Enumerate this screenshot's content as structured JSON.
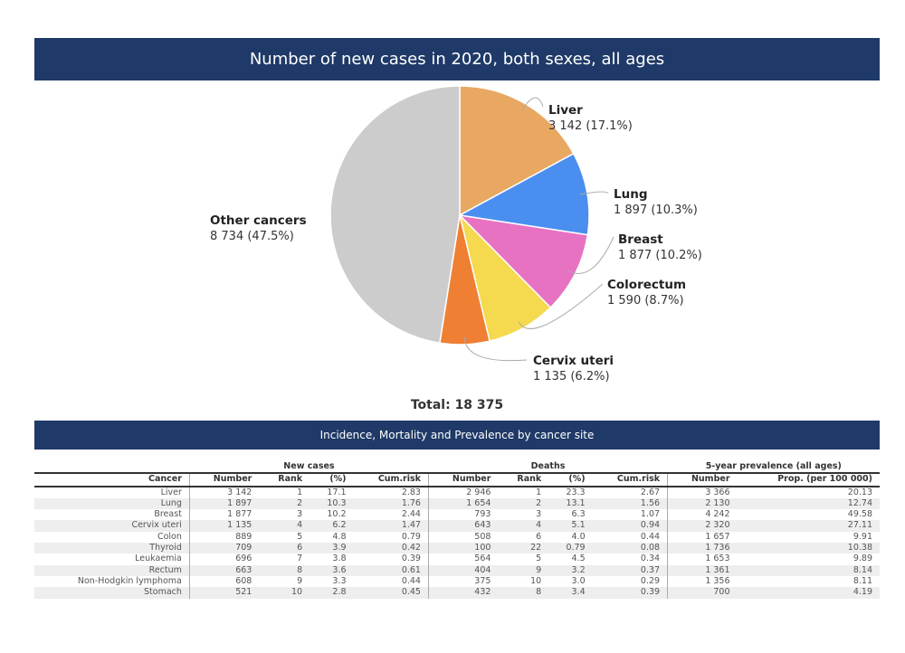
{
  "title": "Number of new cases in 2020, both sexes, all ages",
  "table_title": "Incidence, Mortality and Prevalence by cancer site",
  "chart_data": {
    "type": "pie",
    "title": "Number of new cases in 2020, both sexes, all ages",
    "total_label": "Total: 18 375",
    "slices": [
      {
        "name": "Liver",
        "value": 3142,
        "label": "3 142 (17.1%)",
        "color": "#e8a862"
      },
      {
        "name": "Lung",
        "value": 1897,
        "label": "1 897 (10.3%)",
        "color": "#4a8ff0"
      },
      {
        "name": "Breast",
        "value": 1877,
        "label": "1 877 (10.2%)",
        "color": "#e872c2"
      },
      {
        "name": "Colorectum",
        "value": 1590,
        "label": "1 590 (8.7%)",
        "color": "#f5d94e"
      },
      {
        "name": "Cervix uteri",
        "value": 1135,
        "label": "1 135 (6.2%)",
        "color": "#ef7f33"
      },
      {
        "name": "Other cancers",
        "value": 8734,
        "label": "8 734 (47.5%)",
        "color": "#cccccc"
      }
    ]
  },
  "table": {
    "groups": [
      "New cases",
      "Deaths",
      "5-year prevalence (all ages)"
    ],
    "columns": [
      "Cancer",
      "Number",
      "Rank",
      "(%)",
      "Cum.risk",
      "Number",
      "Rank",
      "(%)",
      "Cum.risk",
      "Number",
      "Prop. (per 100 000)"
    ],
    "rows": [
      [
        "Liver",
        "3 142",
        "1",
        "17.1",
        "2.83",
        "2 946",
        "1",
        "23.3",
        "2.67",
        "3 366",
        "20.13"
      ],
      [
        "Lung",
        "1 897",
        "2",
        "10.3",
        "1.76",
        "1 654",
        "2",
        "13.1",
        "1.56",
        "2 130",
        "12.74"
      ],
      [
        "Breast",
        "1 877",
        "3",
        "10.2",
        "2.44",
        "793",
        "3",
        "6.3",
        "1.07",
        "4 242",
        "49.58"
      ],
      [
        "Cervix uteri",
        "1 135",
        "4",
        "6.2",
        "1.47",
        "643",
        "4",
        "5.1",
        "0.94",
        "2 320",
        "27.11"
      ],
      [
        "Colon",
        "889",
        "5",
        "4.8",
        "0.79",
        "508",
        "6",
        "4.0",
        "0.44",
        "1 657",
        "9.91"
      ],
      [
        "Thyroid",
        "709",
        "6",
        "3.9",
        "0.42",
        "100",
        "22",
        "0.79",
        "0.08",
        "1 736",
        "10.38"
      ],
      [
        "Leukaemia",
        "696",
        "7",
        "3.8",
        "0.39",
        "564",
        "5",
        "4.5",
        "0.34",
        "1 653",
        "9.89"
      ],
      [
        "Rectum",
        "663",
        "8",
        "3.6",
        "0.61",
        "404",
        "9",
        "3.2",
        "0.37",
        "1 361",
        "8.14"
      ],
      [
        "Non-Hodgkin lymphoma",
        "608",
        "9",
        "3.3",
        "0.44",
        "375",
        "10",
        "3.0",
        "0.29",
        "1 356",
        "8.11"
      ],
      [
        "Stomach",
        "521",
        "10",
        "2.8",
        "0.45",
        "432",
        "8",
        "3.4",
        "0.39",
        "700",
        "4.19"
      ]
    ]
  }
}
